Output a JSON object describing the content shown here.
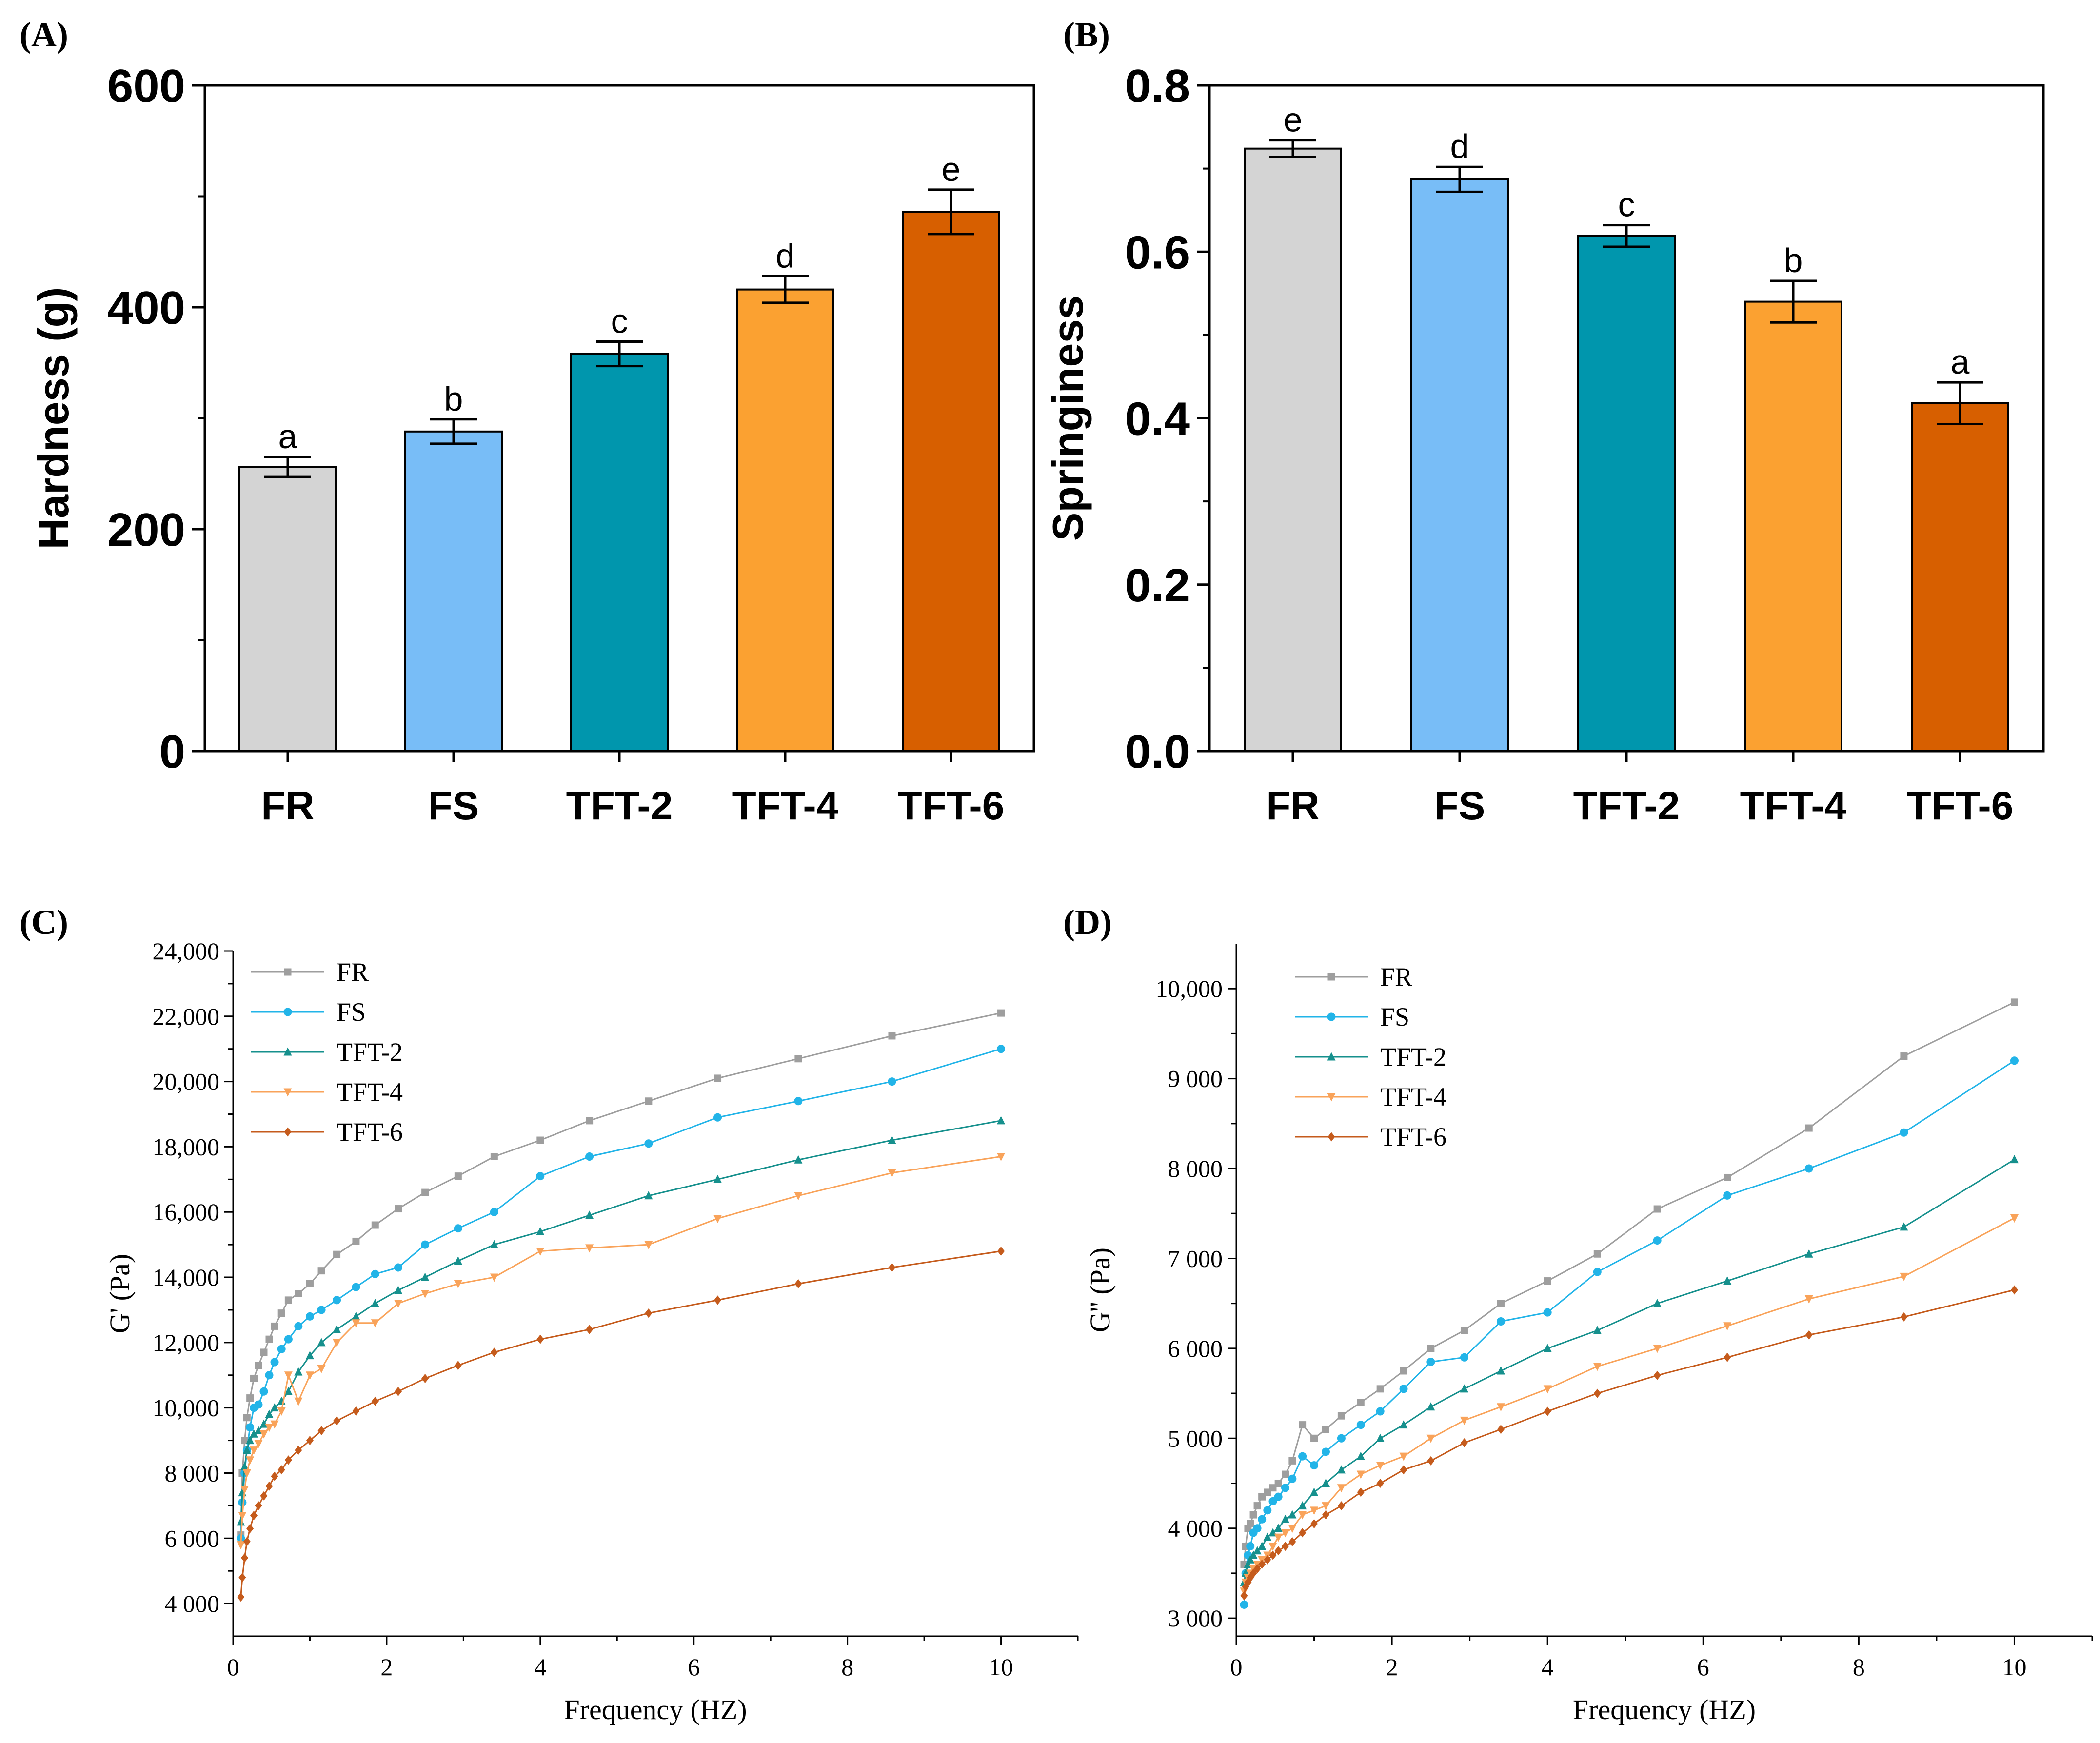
{
  "panels": {
    "A": "(A)",
    "B": "(B)",
    "C": "(C)",
    "D": "(D)"
  },
  "colors": {
    "FR": "#d4d4d4",
    "FS": "#78bdf7",
    "TFT-2": "#0096ad",
    "TFT-4": "#fba131",
    "TFT-6": "#d75f00",
    "lineFR": "#9e9e9e",
    "lineFS": "#22b4e8",
    "lineTFT2": "#16908d",
    "lineTFT4": "#f9a35a",
    "lineTFT6": "#c55b1c"
  },
  "chart_data": [
    {
      "id": "A",
      "type": "bar",
      "ylabel": "Hardness (g)",
      "ylim": [
        0,
        600
      ],
      "yticks": [
        0,
        200,
        400,
        600
      ],
      "ytick_labels": [
        "0",
        "200",
        "400",
        "600"
      ],
      "categories": [
        "FR",
        "FS",
        "TFT-2",
        "TFT-4",
        "TFT-6"
      ],
      "values": [
        256,
        288,
        358,
        416,
        486
      ],
      "errors": [
        9,
        11,
        11,
        12,
        20
      ],
      "letters": [
        "a",
        "b",
        "c",
        "d",
        "e"
      ]
    },
    {
      "id": "B",
      "type": "bar",
      "ylabel": "Springiness",
      "ylim": [
        0,
        0.8
      ],
      "yticks": [
        0,
        0.2,
        0.4,
        0.6,
        0.8
      ],
      "ytick_labels": [
        "0.0",
        "0.2",
        "0.4",
        "0.6",
        "0.8"
      ],
      "categories": [
        "FR",
        "FS",
        "TFT-2",
        "TFT-4",
        "TFT-6"
      ],
      "values": [
        0.724,
        0.687,
        0.619,
        0.54,
        0.418
      ],
      "errors": [
        0.01,
        0.015,
        0.013,
        0.025,
        0.025
      ],
      "letters": [
        "e",
        "d",
        "c",
        "b",
        "a"
      ]
    },
    {
      "id": "C",
      "type": "line",
      "xlabel": "Frequency (HZ)",
      "ylabel": "G' (Pa)",
      "xlim": [
        0,
        11
      ],
      "ylim": [
        3000,
        24000
      ],
      "xticks": [
        0,
        2,
        4,
        6,
        8,
        10
      ],
      "xtick_labels": [
        "0",
        "2",
        "4",
        "6",
        "8",
        "10"
      ],
      "yticks": [
        4000,
        6000,
        8000,
        10000,
        12000,
        14000,
        16000,
        18000,
        20000,
        22000,
        24000
      ],
      "ytick_labels": [
        "4 000",
        "6 000",
        "8 000",
        "10,000",
        "12,000",
        "14,000",
        "16,000",
        "18,000",
        "20,000",
        "22,000",
        "24,000"
      ],
      "series": [
        {
          "name": "FR",
          "marker": "square",
          "x": [
            0.1,
            0.12,
            0.15,
            0.18,
            0.22,
            0.27,
            0.33,
            0.4,
            0.47,
            0.54,
            0.63,
            0.72,
            0.85,
            1.0,
            1.15,
            1.35,
            1.6,
            1.85,
            2.15,
            2.5,
            2.93,
            3.4,
            4.0,
            4.64,
            5.41,
            6.31,
            7.36,
            8.58,
            10.0
          ],
          "y": [
            6100,
            8000,
            9000,
            9700,
            10300,
            10900,
            11300,
            11700,
            12100,
            12500,
            12900,
            13300,
            13500,
            13800,
            14200,
            14700,
            15100,
            15600,
            16100,
            16600,
            17100,
            17700,
            18200,
            18800,
            19400,
            20100,
            20700,
            21400,
            22100
          ]
        },
        {
          "name": "FS",
          "marker": "circle",
          "x": [
            0.1,
            0.12,
            0.15,
            0.18,
            0.22,
            0.27,
            0.33,
            0.4,
            0.47,
            0.54,
            0.63,
            0.72,
            0.85,
            1.0,
            1.15,
            1.35,
            1.6,
            1.85,
            2.15,
            2.5,
            2.93,
            3.4,
            4.0,
            4.64,
            5.41,
            6.31,
            7.36,
            8.58,
            10.0
          ],
          "y": [
            6000,
            7100,
            8000,
            8700,
            9400,
            10000,
            10100,
            10500,
            11000,
            11400,
            11800,
            12100,
            12500,
            12800,
            13000,
            13300,
            13700,
            14100,
            14300,
            15000,
            15500,
            16000,
            17100,
            17700,
            18100,
            18900,
            19400,
            20000,
            21000
          ]
        },
        {
          "name": "TFT-2",
          "marker": "triangle-up",
          "x": [
            0.1,
            0.12,
            0.15,
            0.18,
            0.22,
            0.27,
            0.33,
            0.4,
            0.47,
            0.54,
            0.63,
            0.72,
            0.85,
            1.0,
            1.15,
            1.35,
            1.6,
            1.85,
            2.15,
            2.5,
            2.93,
            3.4,
            4.0,
            4.64,
            5.41,
            6.31,
            7.36,
            8.58,
            10.0
          ],
          "y": [
            6500,
            7400,
            8200,
            8700,
            9000,
            9200,
            9300,
            9500,
            9800,
            10000,
            10200,
            10500,
            11100,
            11600,
            12000,
            12400,
            12800,
            13200,
            13600,
            14000,
            14500,
            15000,
            15400,
            15900,
            16500,
            17000,
            17600,
            18200,
            18800
          ]
        },
        {
          "name": "TFT-4",
          "marker": "triangle-down",
          "x": [
            0.1,
            0.12,
            0.15,
            0.18,
            0.22,
            0.27,
            0.33,
            0.4,
            0.47,
            0.54,
            0.63,
            0.72,
            0.85,
            1.0,
            1.15,
            1.35,
            1.6,
            1.85,
            2.15,
            2.5,
            2.93,
            3.4,
            4.0,
            4.64,
            5.41,
            6.31,
            7.36,
            8.58,
            10.0
          ],
          "y": [
            5800,
            6700,
            7500,
            8000,
            8400,
            8700,
            8900,
            9200,
            9400,
            9500,
            9900,
            11000,
            10200,
            11000,
            11200,
            12000,
            12600,
            12600,
            13200,
            13500,
            13800,
            14000,
            14800,
            14900,
            15000,
            15800,
            16500,
            17200,
            17700
          ]
        },
        {
          "name": "TFT-6",
          "marker": "diamond",
          "x": [
            0.1,
            0.12,
            0.15,
            0.18,
            0.22,
            0.27,
            0.33,
            0.4,
            0.47,
            0.54,
            0.63,
            0.72,
            0.85,
            1.0,
            1.15,
            1.35,
            1.6,
            1.85,
            2.15,
            2.5,
            2.93,
            3.4,
            4.0,
            4.64,
            5.41,
            6.31,
            7.36,
            8.58,
            10.0
          ],
          "y": [
            4200,
            4800,
            5400,
            5900,
            6300,
            6700,
            7000,
            7300,
            7600,
            7900,
            8100,
            8400,
            8700,
            9000,
            9300,
            9600,
            9900,
            10200,
            10500,
            10900,
            11300,
            11700,
            12100,
            12400,
            12900,
            13300,
            13800,
            14300,
            14800
          ]
        }
      ]
    },
    {
      "id": "D",
      "type": "line",
      "xlabel": "Frequency (HZ)",
      "ylabel": "G'' (Pa)",
      "xlim": [
        0,
        11
      ],
      "ylim": [
        2800,
        10500
      ],
      "xticks": [
        0,
        2,
        4,
        6,
        8,
        10
      ],
      "xtick_labels": [
        "0",
        "2",
        "4",
        "6",
        "8",
        "10"
      ],
      "yticks": [
        3000,
        4000,
        5000,
        6000,
        7000,
        8000,
        9000,
        10000
      ],
      "ytick_labels": [
        "3 000",
        "4 000",
        "5 000",
        "6 000",
        "7 000",
        "8 000",
        "9 000",
        "10,000"
      ],
      "series": [
        {
          "name": "FR",
          "marker": "square",
          "x": [
            0.1,
            0.12,
            0.15,
            0.18,
            0.22,
            0.27,
            0.33,
            0.4,
            0.47,
            0.54,
            0.63,
            0.72,
            0.85,
            1.0,
            1.15,
            1.35,
            1.6,
            1.85,
            2.15,
            2.5,
            2.93,
            3.4,
            4.0,
            4.64,
            5.41,
            6.31,
            7.36,
            8.58,
            10.0
          ],
          "y": [
            3600,
            3800,
            4000,
            4050,
            4150,
            4250,
            4350,
            4400,
            4450,
            4500,
            4600,
            4750,
            5150,
            5000,
            5100,
            5250,
            5400,
            5550,
            5750,
            6000,
            6200,
            6500,
            6750,
            7050,
            7550,
            7900,
            8450,
            9250,
            9850
          ]
        },
        {
          "name": "FS",
          "marker": "circle",
          "x": [
            0.1,
            0.12,
            0.15,
            0.18,
            0.22,
            0.27,
            0.33,
            0.4,
            0.47,
            0.54,
            0.63,
            0.72,
            0.85,
            1.0,
            1.15,
            1.35,
            1.6,
            1.85,
            2.15,
            2.5,
            2.93,
            3.4,
            4.0,
            4.64,
            5.41,
            6.31,
            7.36,
            8.58,
            10.0
          ],
          "y": [
            3150,
            3500,
            3700,
            3800,
            3950,
            4000,
            4100,
            4200,
            4300,
            4350,
            4450,
            4550,
            4800,
            4700,
            4850,
            5000,
            5150,
            5300,
            5550,
            5850,
            5900,
            6300,
            6400,
            6850,
            7200,
            7700,
            8000,
            8400,
            9200
          ]
        },
        {
          "name": "TFT-2",
          "marker": "triangle-up",
          "x": [
            0.1,
            0.12,
            0.15,
            0.18,
            0.22,
            0.27,
            0.33,
            0.4,
            0.47,
            0.54,
            0.63,
            0.72,
            0.85,
            1.0,
            1.15,
            1.35,
            1.6,
            1.85,
            2.15,
            2.5,
            2.93,
            3.4,
            4.0,
            4.64,
            5.41,
            6.31,
            7.36,
            8.58,
            10.0
          ],
          "y": [
            3400,
            3500,
            3600,
            3650,
            3700,
            3750,
            3800,
            3900,
            3950,
            4000,
            4100,
            4150,
            4250,
            4400,
            4500,
            4650,
            4800,
            5000,
            5150,
            5350,
            5550,
            5750,
            6000,
            6200,
            6500,
            6750,
            7050,
            7350,
            8100
          ]
        },
        {
          "name": "TFT-4",
          "marker": "triangle-down",
          "x": [
            0.1,
            0.12,
            0.15,
            0.18,
            0.22,
            0.27,
            0.33,
            0.4,
            0.47,
            0.54,
            0.63,
            0.72,
            0.85,
            1.0,
            1.15,
            1.35,
            1.6,
            1.85,
            2.15,
            2.5,
            2.93,
            3.4,
            4.0,
            4.64,
            5.41,
            6.31,
            7.36,
            8.58,
            10.0
          ],
          "y": [
            3300,
            3400,
            3450,
            3500,
            3550,
            3600,
            3650,
            3700,
            3800,
            3900,
            3950,
            4000,
            4150,
            4200,
            4250,
            4450,
            4600,
            4700,
            4800,
            5000,
            5200,
            5350,
            5550,
            5800,
            6000,
            6250,
            6550,
            6800,
            7450
          ]
        },
        {
          "name": "TFT-6",
          "marker": "diamond",
          "x": [
            0.1,
            0.12,
            0.15,
            0.18,
            0.22,
            0.27,
            0.33,
            0.4,
            0.47,
            0.54,
            0.63,
            0.72,
            0.85,
            1.0,
            1.15,
            1.35,
            1.6,
            1.85,
            2.15,
            2.5,
            2.93,
            3.4,
            4.0,
            4.64,
            5.41,
            6.31,
            7.36,
            8.58,
            10.0
          ],
          "y": [
            3250,
            3350,
            3400,
            3450,
            3500,
            3550,
            3600,
            3650,
            3700,
            3750,
            3800,
            3850,
            3950,
            4050,
            4150,
            4250,
            4400,
            4500,
            4650,
            4750,
            4950,
            5100,
            5300,
            5500,
            5700,
            5900,
            6150,
            6350,
            6650
          ]
        }
      ]
    }
  ]
}
